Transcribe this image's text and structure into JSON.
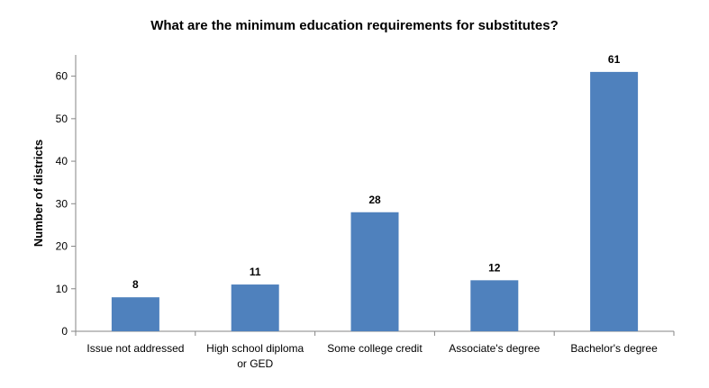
{
  "chart_data": {
    "type": "bar",
    "title": "What are the minimum education requirements for substitutes?",
    "xlabel": "",
    "ylabel": "Number of districts",
    "categories": [
      [
        "Issue not addressed"
      ],
      [
        "High school diploma",
        "or GED"
      ],
      [
        "Some college credit"
      ],
      [
        "Associate's degree"
      ],
      [
        "Bachelor's degree"
      ]
    ],
    "values": [
      8,
      11,
      28,
      12,
      61
    ],
    "ylim": [
      0,
      65
    ],
    "yticks": [
      0,
      10,
      20,
      30,
      40,
      50,
      60
    ],
    "grid": false,
    "legend": "none",
    "bar_color": "#4F81BD"
  }
}
